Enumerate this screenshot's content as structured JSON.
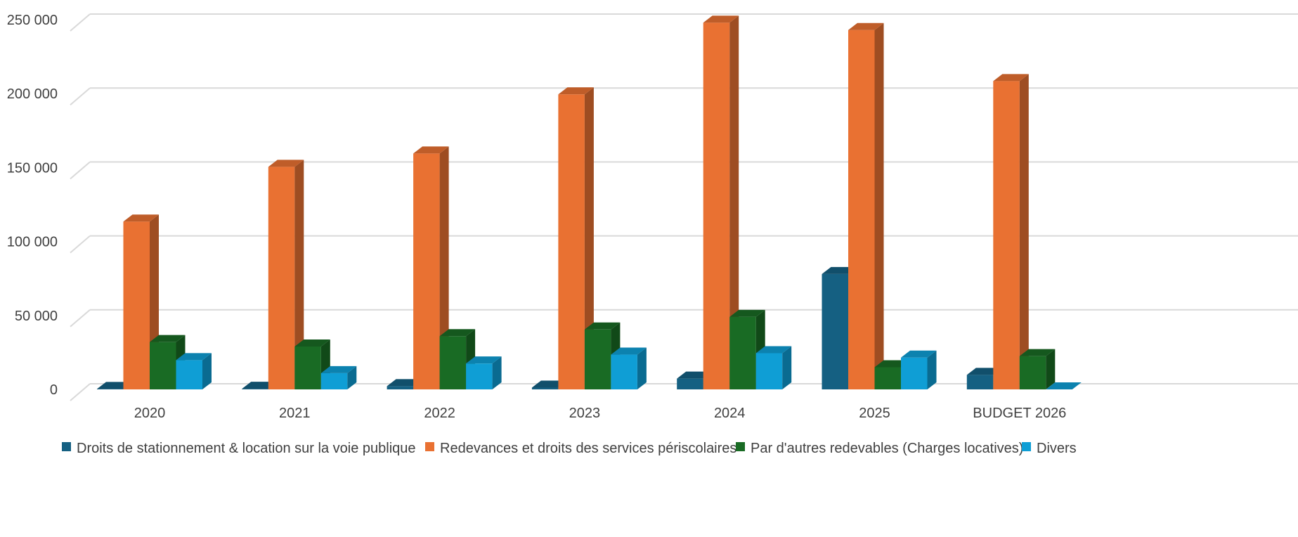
{
  "chart_data": {
    "type": "bar",
    "categories": [
      "2020",
      "2021",
      "2022",
      "2023",
      "2024",
      "2025",
      "BUDGET 2026"
    ],
    "series": [
      {
        "name": "Droits de stationnement & location sur la voie publique",
        "color": "#156082",
        "values": [
          300,
          400,
          2200,
          1200,
          7300,
          78000,
          9800
        ]
      },
      {
        "name": "Redevances et droits des services périscolaires",
        "color": "#E97132",
        "values": [
          113500,
          150500,
          159500,
          199500,
          248000,
          243000,
          208500
        ]
      },
      {
        "name": "Par d'autres redevables (Charges locatives)",
        "color": "#196B24",
        "values": [
          32000,
          29000,
          36000,
          40500,
          49000,
          15000,
          22500
        ]
      },
      {
        "name": "Divers",
        "color": "#0F9ED5",
        "values": [
          19800,
          11000,
          17500,
          23500,
          24500,
          21500,
          0
        ]
      }
    ],
    "yticks": [
      "0",
      "50 000",
      "100 000",
      "150 000",
      "200 000",
      "250 000"
    ],
    "ylim": [
      0,
      250000
    ],
    "grid": true,
    "legend": "bottom",
    "title": "",
    "xlabel": "",
    "ylabel": ""
  }
}
